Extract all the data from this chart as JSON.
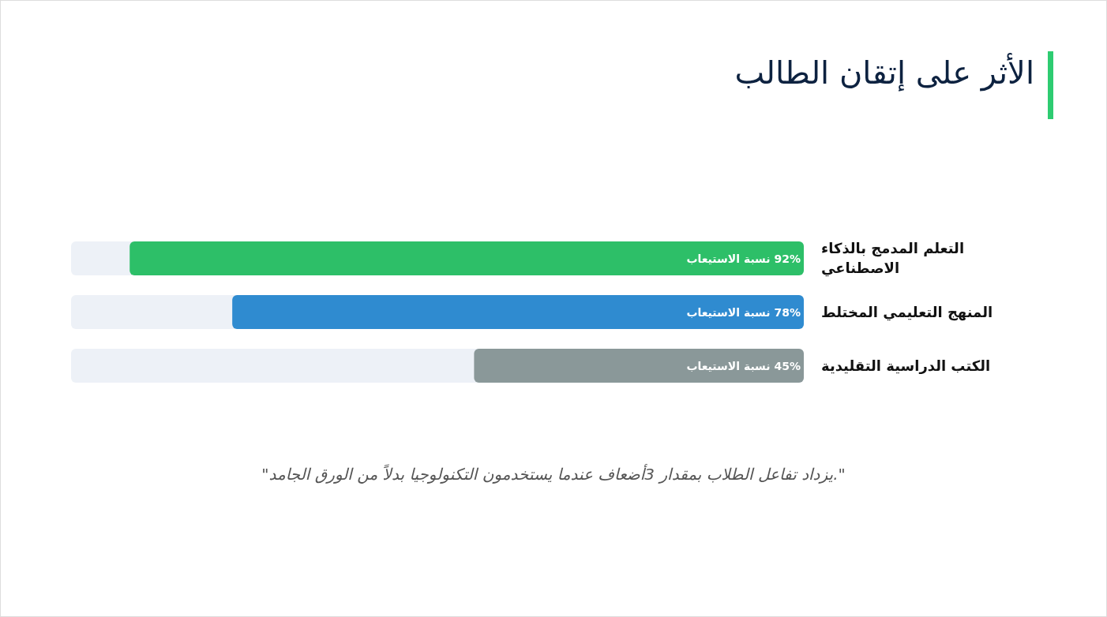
{
  "chart_data": {
    "type": "bar",
    "orientation": "horizontal",
    "title": "الأثر على إتقان الطالب",
    "categories": [
      "التعلم المدمج بالذكاء الاصطناعي",
      "المنهج التعليمي المختلط",
      "الكتب الدراسية التقليدية"
    ],
    "values": [
      92,
      78,
      45
    ],
    "colors": [
      "#2dbf68",
      "#2f8bd0",
      "#8a9899"
    ],
    "xlim": [
      100,
      0
    ],
    "value_labels": [
      "92% نسبة الاستيعاب",
      "78% نسبة الاستيعاب",
      "45% نسبة الاستيعاب"
    ],
    "annotations": [
      "\"يزداد تفاعل الطلاب بمقدار 3أضعاف عندما يستخدمون التكنولوجيا بدلاً من الورق الجامد.\""
    ]
  }
}
